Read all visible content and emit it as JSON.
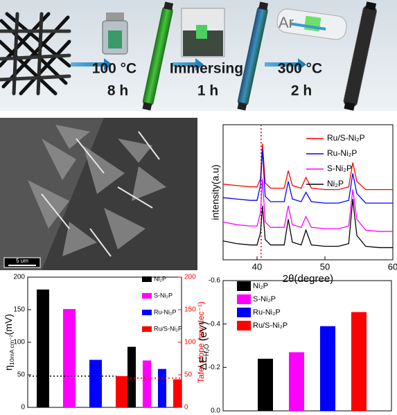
{
  "schematic": {
    "step1_temp": "100 °C",
    "step1_time": "8 h",
    "step2_action": "Immersing",
    "step2_time": "1 h",
    "step3_gas": "Ar",
    "step3_temp": "300 °C",
    "step3_time": "2 h"
  },
  "sem": {
    "scale_bar": "5 um"
  },
  "chart_data": [
    {
      "type": "line",
      "xlabel": "2θ(degree)",
      "ylabel": "intensity(a.u)",
      "x": [
        35,
        37,
        39,
        40,
        40.5,
        40.8,
        41.2,
        42,
        44,
        44.6,
        45.2,
        46.5,
        47.2,
        48,
        50,
        52,
        53.5,
        54.1,
        54.7,
        56,
        58,
        60
      ],
      "xlim": [
        35,
        60
      ],
      "xticks": [
        40,
        50,
        60
      ],
      "ylim": [
        0,
        100
      ],
      "vline": 40.6,
      "vline_color": "#d40000",
      "legend": "upper right",
      "series": [
        {
          "name": "Ru/S-Ni₂P",
          "color": "#ff0000",
          "values": [
            56,
            55,
            54,
            54,
            60,
            86,
            57,
            53,
            53,
            66,
            55,
            53,
            61,
            53,
            52,
            52,
            54,
            72,
            58,
            52,
            52,
            52
          ]
        },
        {
          "name": "Ru-Ni₂P",
          "color": "#0000ff",
          "values": [
            46,
            45,
            44,
            44,
            55,
            82,
            47,
            43,
            43,
            58,
            45,
            43,
            50,
            43,
            42,
            42,
            44,
            64,
            49,
            42,
            42,
            42
          ]
        },
        {
          "name": "S-Ni₂P",
          "color": "#ff00ff",
          "values": [
            28,
            26,
            25,
            25,
            35,
            60,
            28,
            24,
            24,
            40,
            26,
            24,
            32,
            24,
            23,
            23,
            25,
            52,
            30,
            22,
            21,
            21
          ]
        },
        {
          "name": "Ni₂P",
          "color": "#000000",
          "values": [
            14,
            12,
            11,
            11,
            20,
            40,
            15,
            11,
            11,
            30,
            13,
            11,
            22,
            11,
            10,
            10,
            12,
            45,
            18,
            10,
            9,
            9
          ]
        }
      ]
    },
    {
      "type": "bar",
      "ylabel": [
        "η",
        "10mA cm⁻²",
        "(mV)"
      ],
      "y2label": "Tafel slope (mv dec⁻¹)",
      "categories": [
        null,
        null
      ],
      "category_axes": [
        "y",
        "y2"
      ],
      "ylim": [
        0,
        200
      ],
      "yticks": [
        0,
        50,
        100,
        150,
        200
      ],
      "y2lim": [
        0,
        200
      ],
      "y2ticks": [
        0,
        50,
        100,
        150,
        200
      ],
      "y2color": "#ff0000",
      "ref_lines": [
        {
          "value": 48,
          "color": "#000000"
        },
        {
          "value": 45,
          "color": "#ff0000"
        }
      ],
      "legend": "upper right",
      "series": [
        {
          "name": "Ni₂P",
          "color": "#000000",
          "values": [
            181,
            93
          ]
        },
        {
          "name": "S-Ni₂P",
          "color": "#ff00ff",
          "values": [
            151,
            72
          ]
        },
        {
          "name": "Ru-Ni₂P",
          "color": "#0000ff",
          "values": [
            73,
            59
          ]
        },
        {
          "name": "Ru/S-Ni₂P",
          "color": "#ff0000",
          "values": [
            48,
            43
          ]
        }
      ]
    },
    {
      "type": "bar",
      "ylabel": [
        "ΔE",
        "H₂O",
        " (eV)"
      ],
      "categories": [
        null
      ],
      "ylim": [
        0,
        -0.6
      ],
      "yticks": [
        {
          "value": 0,
          "label": "0.0"
        },
        -0.2,
        -0.4,
        -0.6
      ],
      "legend": "upper left",
      "series": [
        {
          "name": "Ni₂P",
          "color": "#000000",
          "values": [
            -0.24
          ]
        },
        {
          "name": "S-Ni₂P",
          "color": "#ff00ff",
          "values": [
            -0.27
          ]
        },
        {
          "name": "Ru-Ni₂P",
          "color": "#0000ff",
          "values": [
            -0.39
          ]
        },
        {
          "name": "Ru/S-Ni₂P",
          "color": "#ff0000",
          "values": [
            -0.455
          ]
        }
      ]
    }
  ]
}
